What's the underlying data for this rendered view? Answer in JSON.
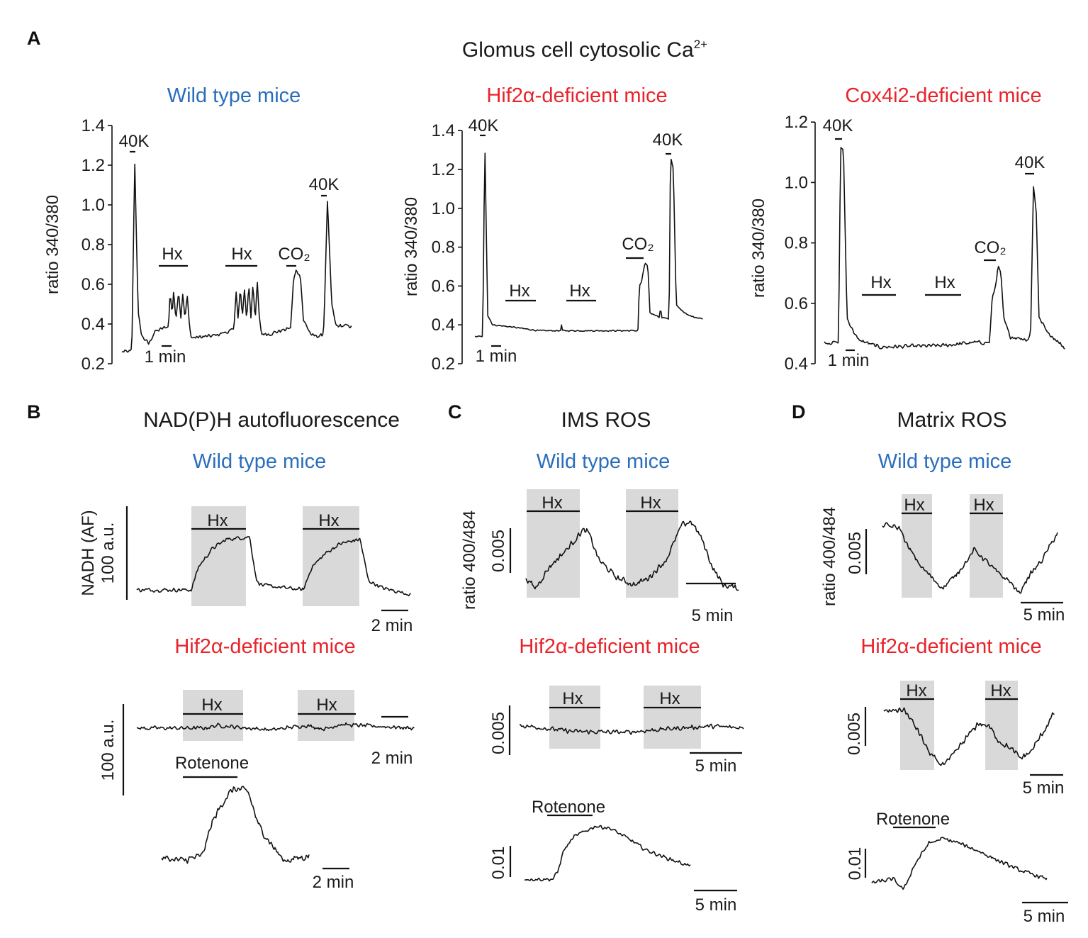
{
  "figure": {
    "panel_A": "A",
    "panel_B": "B",
    "panel_C": "C",
    "panel_D": "D",
    "title_A_main": "Glomus cell cytosolic Ca",
    "title_A_sup": "2+",
    "title_B": "NAD(P)H autofluorescence",
    "title_C": "IMS ROS",
    "title_D": "Matrix ROS",
    "wild_type": "Wild type mice",
    "hif2a": "Hif2α-deficient mice",
    "cox4i2": "Cox4i2-deficient mice",
    "colors": {
      "wild_type": "#2a6ebb",
      "deficient": "#e8232a"
    }
  },
  "labels": {
    "ca_ylabel": "ratio 340/380",
    "ros_ylabel": "ratio 400/484",
    "nadh_ylabel": "NADH (AF)",
    "au100": "100 a.u.",
    "k40": "40K",
    "hx": "Hx",
    "co2": "CO₂",
    "rotenone": "Rotenone",
    "min1": "1 min",
    "min2": "2 min",
    "min5": "5 min",
    "s0005": "0.005",
    "s001": "0.01"
  },
  "chart_data": [
    {
      "id": "A1",
      "type": "line",
      "title": "Wild type mice",
      "ylabel": "ratio 340/380",
      "ylim": [
        0.2,
        1.4
      ],
      "yticks": [
        "0.2",
        "0.4",
        "0.6",
        "0.8",
        "1.0",
        "1.2",
        "1.4"
      ],
      "x_unit": "min",
      "scale_bar": "1 min",
      "stimuli": [
        "40K",
        "Hx",
        "Hx",
        "CO2",
        "40K"
      ],
      "points": [
        [
          0,
          0.26
        ],
        [
          0.86,
          0.26
        ],
        [
          1.0,
          0.27
        ],
        [
          1.29,
          1.23
        ],
        [
          1.64,
          0.45
        ],
        [
          2,
          0.34
        ],
        [
          2.7,
          0.3
        ],
        [
          3.3,
          0.36
        ],
        [
          4.7,
          0.39
        ],
        [
          4.86,
          0.56
        ],
        [
          5.07,
          0.45
        ],
        [
          5.21,
          0.57
        ],
        [
          5.43,
          0.42
        ],
        [
          5.71,
          0.57
        ],
        [
          5.93,
          0.43
        ],
        [
          6.14,
          0.56
        ],
        [
          6.36,
          0.42
        ],
        [
          6.57,
          0.55
        ],
        [
          6.79,
          0.4
        ],
        [
          7.0,
          0.33
        ],
        [
          9.14,
          0.34
        ],
        [
          11.29,
          0.37
        ],
        [
          11.5,
          0.58
        ],
        [
          11.71,
          0.42
        ],
        [
          11.93,
          0.58
        ],
        [
          12.14,
          0.43
        ],
        [
          12.36,
          0.58
        ],
        [
          12.57,
          0.42
        ],
        [
          12.79,
          0.6
        ],
        [
          13.0,
          0.43
        ],
        [
          13.21,
          0.61
        ],
        [
          13.43,
          0.42
        ],
        [
          13.64,
          0.61
        ],
        [
          13.86,
          0.42
        ],
        [
          14.07,
          0.35
        ],
        [
          14.86,
          0.35
        ],
        [
          17,
          0.38
        ],
        [
          17.29,
          0.62
        ],
        [
          17.57,
          0.67
        ],
        [
          18,
          0.64
        ],
        [
          18.29,
          0.42
        ],
        [
          19.14,
          0.34
        ],
        [
          20.21,
          0.34
        ],
        [
          20.36,
          0.4
        ],
        [
          20.71,
          1.02
        ],
        [
          21.14,
          0.5
        ],
        [
          21.57,
          0.39
        ],
        [
          23.2,
          0.39
        ]
      ]
    },
    {
      "id": "A2",
      "type": "line",
      "title": "Hif2α-deficient mice",
      "ylabel": "ratio 340/380",
      "ylim": [
        0.2,
        1.4
      ],
      "yticks": [
        "0.2",
        "0.4",
        "0.6",
        "0.8",
        "1.0",
        "1.2",
        "1.4"
      ],
      "x_unit": "min",
      "scale_bar": "1 min",
      "stimuli": [
        "40K",
        "Hx",
        "Hx",
        "CO2",
        "40K"
      ],
      "points": [
        [
          0,
          0.34
        ],
        [
          0.79,
          0.34
        ],
        [
          1.0,
          1.35
        ],
        [
          1.29,
          0.45
        ],
        [
          1.79,
          0.4
        ],
        [
          3.57,
          0.39
        ],
        [
          6.43,
          0.37
        ],
        [
          8.64,
          0.37
        ],
        [
          8.71,
          0.41
        ],
        [
          8.78,
          0.37
        ],
        [
          16.43,
          0.37
        ],
        [
          16.57,
          0.6
        ],
        [
          16.79,
          0.62
        ],
        [
          17.14,
          0.72
        ],
        [
          17.43,
          0.7
        ],
        [
          17.64,
          0.46
        ],
        [
          18.21,
          0.45
        ],
        [
          18.64,
          0.44
        ],
        [
          18.71,
          0.53
        ],
        [
          18.78,
          0.44
        ],
        [
          19.57,
          0.43
        ],
        [
          19.71,
          1.27
        ],
        [
          20.0,
          1.2
        ],
        [
          20.29,
          0.5
        ],
        [
          21.43,
          0.45
        ],
        [
          23.0,
          0.43
        ]
      ]
    },
    {
      "id": "A3",
      "type": "line",
      "title": "Cox4i2-deficient mice",
      "ylabel": "ratio 340/380",
      "ylim": [
        0.4,
        1.2
      ],
      "yticks": [
        "0.4",
        "0.6",
        "0.8",
        "1.0",
        "1.2"
      ],
      "x_unit": "min",
      "scale_bar": "1 min",
      "stimuli": [
        "40K",
        "Hx",
        "Hx",
        "CO2",
        "40K"
      ],
      "points": [
        [
          0,
          0.47
        ],
        [
          1.43,
          0.47
        ],
        [
          1.64,
          1.12
        ],
        [
          1.93,
          1.1
        ],
        [
          2.29,
          0.55
        ],
        [
          3.36,
          0.48
        ],
        [
          5.5,
          0.455
        ],
        [
          11.93,
          0.46
        ],
        [
          14.93,
          0.47
        ],
        [
          16.64,
          0.47
        ],
        [
          16.93,
          0.62
        ],
        [
          17.21,
          0.65
        ],
        [
          17.5,
          0.72
        ],
        [
          17.79,
          0.7
        ],
        [
          18.07,
          0.55
        ],
        [
          18.71,
          0.49
        ],
        [
          20.5,
          0.48
        ],
        [
          20.79,
          0.5
        ],
        [
          21.07,
          0.99
        ],
        [
          21.36,
          0.9
        ],
        [
          21.64,
          0.55
        ],
        [
          22.64,
          0.5
        ],
        [
          24.29,
          0.45
        ]
      ]
    },
    {
      "id": "B1",
      "type": "line",
      "title": "NAD(P)H autofluorescence — Wild type mice",
      "ylabel": "NADH (AF)",
      "y_unit": "a.u.",
      "scale_bar": [
        "100 a.u.",
        "2 min"
      ],
      "hx_periods_min": [
        [
          4.05,
          8.1
        ],
        [
          12.3,
          16.5
        ]
      ],
      "points": [
        [
          0,
          0
        ],
        [
          4.05,
          0
        ],
        [
          4.58,
          25
        ],
        [
          5.63,
          45
        ],
        [
          6.68,
          55
        ],
        [
          8.1,
          57
        ],
        [
          8.37,
          58
        ],
        [
          8.89,
          10
        ],
        [
          9.3,
          5
        ],
        [
          12.37,
          0
        ],
        [
          13,
          25
        ],
        [
          14.05,
          40
        ],
        [
          15.1,
          50
        ],
        [
          16.58,
          55
        ],
        [
          17.2,
          10
        ],
        [
          18.26,
          2
        ],
        [
          20.37,
          -5
        ]
      ]
    },
    {
      "id": "B2",
      "type": "line",
      "title": "NAD(P)H autofluorescence — Hif2α-deficient mice",
      "y_unit": "a.u.",
      "scale_bar": [
        "100 a.u.",
        "2 min"
      ],
      "hx_periods_min": [
        [
          3.4,
          7.9
        ],
        [
          11.9,
          16.1
        ]
      ],
      "points": [
        [
          0,
          0
        ],
        [
          5,
          0
        ],
        [
          6,
          3
        ],
        [
          7.5,
          1
        ],
        [
          10,
          -2
        ],
        [
          12.5,
          3
        ],
        [
          14,
          -1
        ],
        [
          15,
          4
        ],
        [
          20.6,
          0
        ]
      ]
    },
    {
      "id": "B3",
      "type": "line",
      "title": "NAD(P)H — Rotenone",
      "y_unit": "a.u.",
      "scale_bar": "2 min",
      "points": [
        [
          0,
          0
        ],
        [
          1.5,
          -3
        ],
        [
          3,
          2
        ],
        [
          3.79,
          40
        ],
        [
          4.74,
          65
        ],
        [
          5.37,
          75
        ],
        [
          6.42,
          72
        ],
        [
          7.2,
          35
        ],
        [
          8,
          18
        ],
        [
          9.05,
          -3
        ],
        [
          10.95,
          2
        ]
      ]
    },
    {
      "id": "C1",
      "type": "line",
      "title": "IMS ROS — Wild type mice",
      "ylabel": "ratio 400/484",
      "scale_bar": [
        "0.005",
        "5 min"
      ],
      "points": [
        [
          0,
          0.0012
        ],
        [
          0.93,
          0
        ],
        [
          2.36,
          0.0024
        ],
        [
          4.14,
          0.0044
        ],
        [
          5.71,
          0.0065
        ],
        [
          6.29,
          0.0063
        ],
        [
          7.36,
          0.0032
        ],
        [
          9.14,
          0.0012
        ],
        [
          10.93,
          0.0004
        ],
        [
          12.36,
          0.0012
        ],
        [
          14.14,
          0.0032
        ],
        [
          15.71,
          0.0071
        ],
        [
          16.64,
          0.0075
        ],
        [
          17.71,
          0.0056
        ],
        [
          18.79,
          0.0024
        ],
        [
          19.86,
          0.0004
        ],
        [
          21.5,
          0
        ]
      ]
    },
    {
      "id": "C2",
      "type": "line",
      "title": "IMS ROS — Hif2α-deficient mice",
      "scale_bar": [
        "0.005",
        "5 min"
      ],
      "points": [
        [
          0,
          0.0004
        ],
        [
          5,
          -0.0003
        ],
        [
          10,
          -0.0004
        ],
        [
          14,
          0
        ],
        [
          18,
          0.0003
        ],
        [
          21.1,
          0.0001
        ]
      ]
    },
    {
      "id": "C3",
      "type": "line",
      "title": "IMS ROS — Rotenone",
      "scale_bar": [
        "0.01",
        "5 min"
      ],
      "points": [
        [
          0,
          0
        ],
        [
          3.33,
          0
        ],
        [
          3.9,
          0.0023
        ],
        [
          4.58,
          0.0091
        ],
        [
          5.83,
          0.0136
        ],
        [
          8.33,
          0.017
        ],
        [
          10,
          0.0164
        ],
        [
          12.5,
          0.0125
        ],
        [
          14.17,
          0.0095
        ],
        [
          16.67,
          0.0068
        ],
        [
          19.58,
          0.0041
        ]
      ]
    },
    {
      "id": "D1",
      "type": "line",
      "title": "Matrix ROS — Wild type mice",
      "ylabel": "ratio 400/484",
      "scale_bar": [
        "0.005",
        "5 min"
      ],
      "points": [
        [
          0,
          0.0108
        ],
        [
          2.08,
          0.0102
        ],
        [
          2.92,
          0.0074
        ],
        [
          4.58,
          0.004
        ],
        [
          5.83,
          0.0023
        ],
        [
          7.08,
          0.0006
        ],
        [
          8.33,
          0.0023
        ],
        [
          10,
          0.0051
        ],
        [
          10.83,
          0.0068
        ],
        [
          12.08,
          0.0051
        ],
        [
          13.75,
          0.0028
        ],
        [
          15,
          0.0017
        ],
        [
          16.08,
          -0.0003
        ],
        [
          17.08,
          0.0023
        ],
        [
          18.75,
          0.0051
        ],
        [
          20.67,
          0.0097
        ]
      ]
    },
    {
      "id": "D2",
      "type": "line",
      "title": "Matrix ROS — Hif2α-deficient mice",
      "scale_bar": [
        "0.005",
        "5 min"
      ],
      "points": [
        [
          0,
          0.0073
        ],
        [
          2.8,
          0.0077
        ],
        [
          4.8,
          0.005
        ],
        [
          6.3,
          0.0023
        ],
        [
          7.8,
          0.0006
        ],
        [
          9.3,
          0.0012
        ],
        [
          11.3,
          0.0036
        ],
        [
          13.3,
          0.0059
        ],
        [
          14.8,
          0.0055
        ],
        [
          16.3,
          0.0036
        ],
        [
          17.8,
          0.0027
        ],
        [
          19.3,
          0.0014
        ],
        [
          20.8,
          0.0023
        ],
        [
          22.3,
          0.0045
        ],
        [
          24.1,
          0.0073
        ]
      ]
    },
    {
      "id": "D3",
      "type": "line",
      "title": "Matrix ROS — Rotenone",
      "scale_bar": [
        "0.01",
        "5 min"
      ],
      "points": [
        [
          0,
          0.0024
        ],
        [
          2.31,
          0.0037
        ],
        [
          3.46,
          0
        ],
        [
          4.62,
          0.0085
        ],
        [
          6.15,
          0.0159
        ],
        [
          7.69,
          0.0176
        ],
        [
          9.23,
          0.0163
        ],
        [
          11.54,
          0.0134
        ],
        [
          13.85,
          0.0098
        ],
        [
          16.15,
          0.0066
        ],
        [
          19,
          0.0037
        ]
      ]
    }
  ]
}
